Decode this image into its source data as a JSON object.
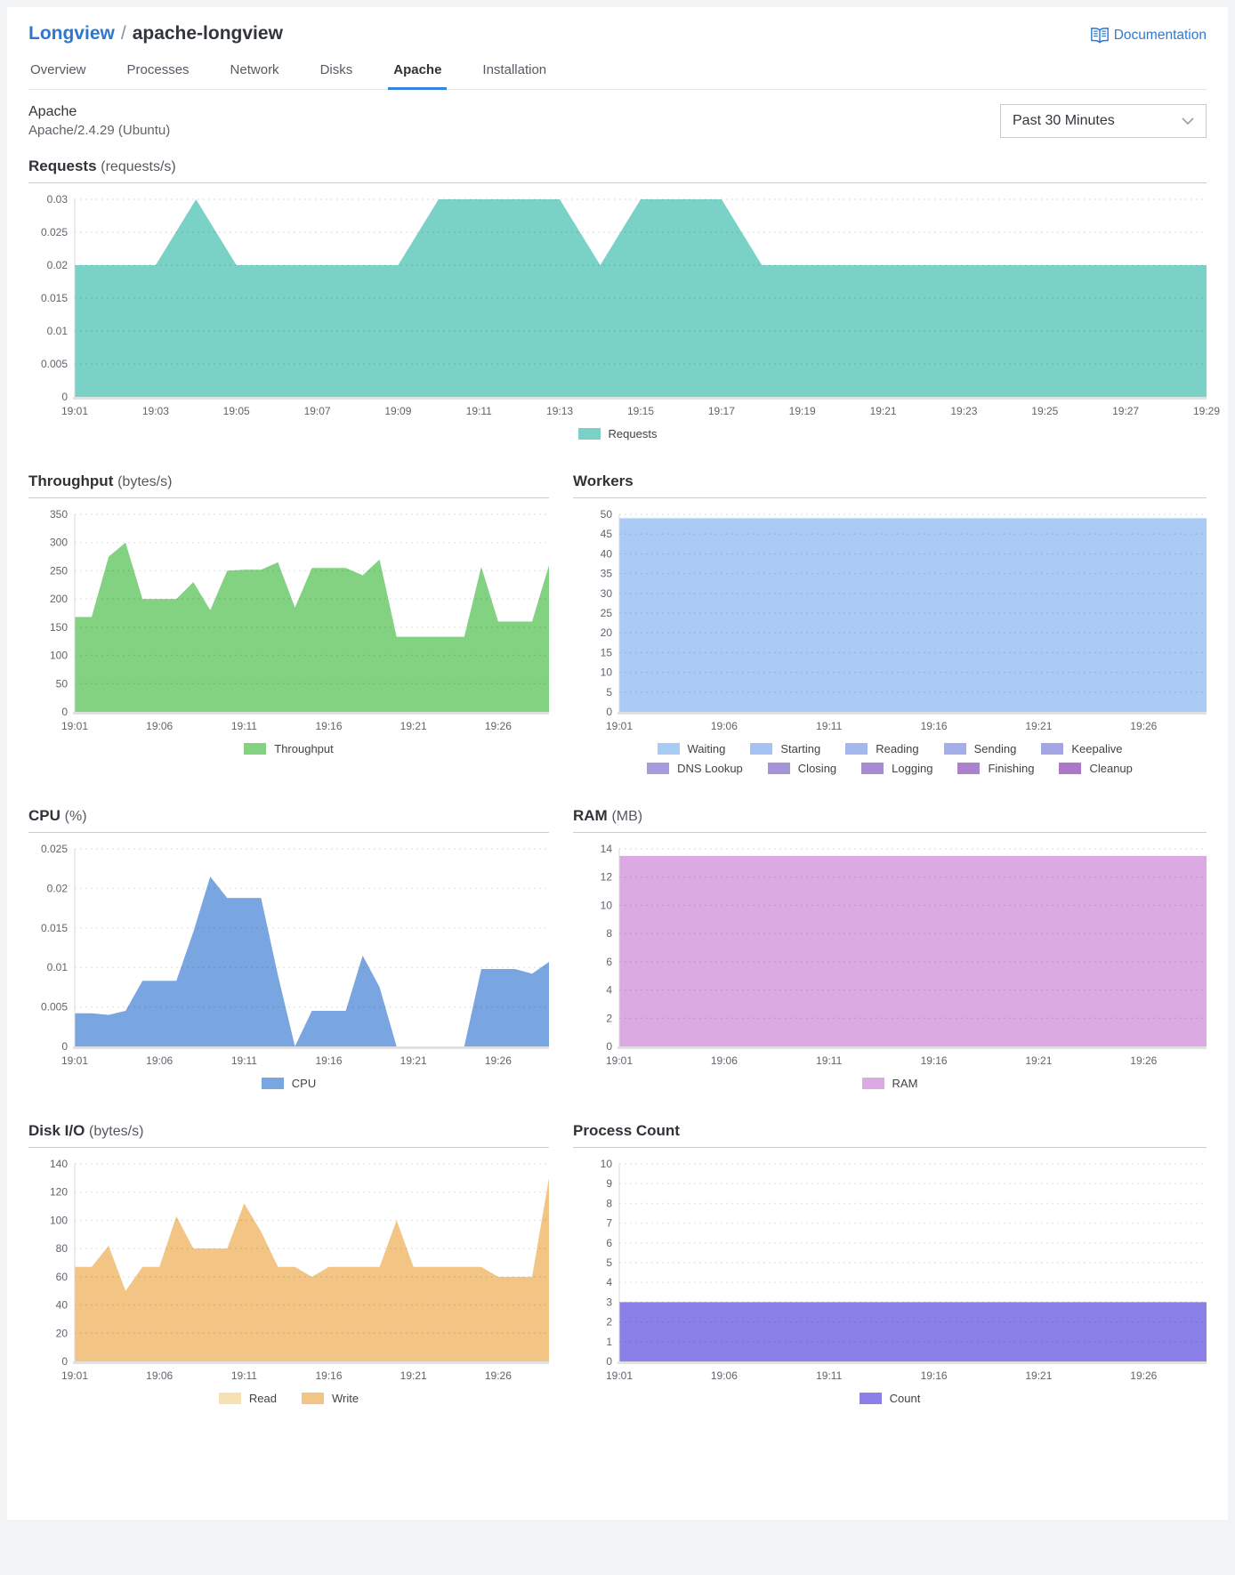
{
  "header": {
    "breadcrumb": {
      "parent": "Longview",
      "separator": "/",
      "current": "apache-longview"
    },
    "documentation_label": "Documentation",
    "tabs": [
      {
        "label": "Overview"
      },
      {
        "label": "Processes"
      },
      {
        "label": "Network"
      },
      {
        "label": "Disks"
      },
      {
        "label": "Apache"
      },
      {
        "label": "Installation"
      }
    ],
    "active_tab": "Apache"
  },
  "subheader": {
    "title": "Apache",
    "version": "Apache/2.4.29 (Ubuntu)",
    "time_range_value": "Past 30 Minutes"
  },
  "colors": {
    "accent_blue": "#3683dc",
    "link_blue": "#2f7ad1",
    "requests_teal": "#79d2c5",
    "throughput_green": "#82d282",
    "workers_blue": "#abcbf7",
    "cpu_blue": "#79a5e0",
    "ram_orchid": "#dcaae2",
    "disk_read": "#f8e0b5",
    "disk_write": "#f3c584",
    "count_purple": "#8b80e8"
  },
  "chart_data": [
    {
      "type": "area",
      "title": "Requests",
      "unit": "(requests/s)",
      "ylim": [
        0,
        0.03
      ],
      "yticks": [
        "0",
        "0.005",
        "0.01",
        "0.015",
        "0.02",
        "0.025",
        "0.03"
      ],
      "x_minutes_span": [
        1,
        29
      ],
      "xticks": [
        {
          "m": 1,
          "label": "19:01"
        },
        {
          "m": 3,
          "label": "19:03"
        },
        {
          "m": 5,
          "label": "19:05"
        },
        {
          "m": 7,
          "label": "19:07"
        },
        {
          "m": 9,
          "label": "19:09"
        },
        {
          "m": 11,
          "label": "19:11"
        },
        {
          "m": 13,
          "label": "19:13"
        },
        {
          "m": 15,
          "label": "19:15"
        },
        {
          "m": 17,
          "label": "19:17"
        },
        {
          "m": 19,
          "label": "19:19"
        },
        {
          "m": 21,
          "label": "19:21"
        },
        {
          "m": 23,
          "label": "19:23"
        },
        {
          "m": 25,
          "label": "19:25"
        },
        {
          "m": 27,
          "label": "19:27"
        },
        {
          "m": 29,
          "label": "19:29"
        }
      ],
      "series": [
        {
          "name": "Requests",
          "color": "#79d2c5",
          "values": [
            0.02,
            0.02,
            0.02,
            0.03,
            0.02,
            0.02,
            0.02,
            0.02,
            0.02,
            0.03,
            0.03,
            0.03,
            0.03,
            0.02,
            0.03,
            0.03,
            0.03,
            0.02,
            0.02,
            0.02,
            0.02,
            0.02,
            0.02,
            0.02,
            0.02,
            0.02,
            0.02,
            0.02,
            0.02
          ]
        }
      ],
      "legend": [
        [
          {
            "label": "Requests",
            "color": "#79d2c5"
          }
        ]
      ]
    },
    {
      "type": "area",
      "title": "Throughput",
      "unit": "(bytes/s)",
      "ylim": [
        0,
        350
      ],
      "yticks": [
        "0",
        "50",
        "100",
        "150",
        "200",
        "250",
        "300",
        "350"
      ],
      "x_minutes_span": [
        1,
        29
      ],
      "xticks": [
        {
          "m": 1,
          "label": "19:01"
        },
        {
          "m": 6,
          "label": "19:06"
        },
        {
          "m": 11,
          "label": "19:11"
        },
        {
          "m": 16,
          "label": "19:16"
        },
        {
          "m": 21,
          "label": "19:21"
        },
        {
          "m": 26,
          "label": "19:26"
        }
      ],
      "series": [
        {
          "name": "Throughput",
          "color": "#82d282",
          "values": [
            168,
            168,
            275,
            300,
            200,
            200,
            200,
            230,
            180,
            250,
            252,
            252,
            265,
            185,
            255,
            255,
            255,
            242,
            270,
            133,
            133,
            133,
            133,
            133,
            257,
            160,
            160,
            160,
            260
          ]
        }
      ],
      "legend": [
        [
          {
            "label": "Throughput",
            "color": "#82d282"
          }
        ]
      ]
    },
    {
      "type": "area",
      "title": "Workers",
      "unit": "",
      "ylim": [
        0,
        50
      ],
      "yticks": [
        "0",
        "5",
        "10",
        "15",
        "20",
        "25",
        "30",
        "35",
        "40",
        "45",
        "50"
      ],
      "x_minutes_span": [
        1,
        29
      ],
      "xticks": [
        {
          "m": 1,
          "label": "19:01"
        },
        {
          "m": 6,
          "label": "19:06"
        },
        {
          "m": 11,
          "label": "19:11"
        },
        {
          "m": 16,
          "label": "19:16"
        },
        {
          "m": 21,
          "label": "19:21"
        },
        {
          "m": 26,
          "label": "19:26"
        }
      ],
      "series": [
        {
          "name": "Waiting",
          "color": "#abcbf7",
          "values": {
            "flat": 49,
            "n": 29
          }
        },
        {
          "name": "Starting",
          "color": "#a6c2f4",
          "values": {
            "flat": 0,
            "n": 29
          }
        },
        {
          "name": "Reading",
          "color": "#a4b8ef",
          "values": {
            "flat": 0,
            "n": 29
          }
        },
        {
          "name": "Sending",
          "color": "#a4afe9",
          "values": {
            "flat": 0,
            "n": 29
          }
        },
        {
          "name": "Keepalive",
          "color": "#a4a5e3",
          "values": {
            "flat": 0,
            "n": 29
          }
        },
        {
          "name": "DNS Lookup",
          "color": "#a49cde",
          "values": {
            "flat": 0,
            "n": 29
          }
        },
        {
          "name": "Closing",
          "color": "#a593d8",
          "values": {
            "flat": 0,
            "n": 29
          }
        },
        {
          "name": "Logging",
          "color": "#a78ad2",
          "values": {
            "flat": 0,
            "n": 29
          }
        },
        {
          "name": "Finishing",
          "color": "#a981cc",
          "values": {
            "flat": 0,
            "n": 29
          }
        },
        {
          "name": "Cleanup",
          "color": "#ab78c6",
          "values": {
            "flat": 0,
            "n": 29
          }
        }
      ],
      "legend": [
        [
          {
            "label": "Waiting",
            "color": "#abcbf7"
          },
          {
            "label": "Starting",
            "color": "#a6c2f4"
          },
          {
            "label": "Reading",
            "color": "#a4b8ef"
          },
          {
            "label": "Sending",
            "color": "#a4afe9"
          },
          {
            "label": "Keepalive",
            "color": "#a4a5e3"
          }
        ],
        [
          {
            "label": "DNS Lookup",
            "color": "#a49cde"
          },
          {
            "label": "Closing",
            "color": "#a593d8"
          },
          {
            "label": "Logging",
            "color": "#a78ad2"
          },
          {
            "label": "Finishing",
            "color": "#a981cc"
          },
          {
            "label": "Cleanup",
            "color": "#ab78c6"
          }
        ]
      ]
    },
    {
      "type": "area",
      "title": "CPU",
      "unit": "(%)",
      "ylim": [
        0,
        0.025
      ],
      "yticks": [
        "0",
        "0.005",
        "0.01",
        "0.015",
        "0.02",
        "0.025"
      ],
      "x_minutes_span": [
        1,
        29
      ],
      "xticks": [
        {
          "m": 1,
          "label": "19:01"
        },
        {
          "m": 6,
          "label": "19:06"
        },
        {
          "m": 11,
          "label": "19:11"
        },
        {
          "m": 16,
          "label": "19:16"
        },
        {
          "m": 21,
          "label": "19:21"
        },
        {
          "m": 26,
          "label": "19:26"
        }
      ],
      "series": [
        {
          "name": "CPU",
          "color": "#79a5e0",
          "values": [
            0.0042,
            0.0042,
            0.004,
            0.0045,
            0.0083,
            0.0083,
            0.0083,
            0.0145,
            0.0215,
            0.0188,
            0.0188,
            0.0188,
            0.009,
            0,
            0.0045,
            0.0045,
            0.0045,
            0.0115,
            0.0075,
            0,
            0,
            0,
            0,
            0,
            0.0098,
            0.0098,
            0.0098,
            0.0092,
            0.0107
          ]
        }
      ],
      "legend": [
        [
          {
            "label": "CPU",
            "color": "#79a5e0"
          }
        ]
      ]
    },
    {
      "type": "area",
      "title": "RAM",
      "unit": "(MB)",
      "ylim": [
        0,
        14
      ],
      "yticks": [
        "0",
        "2",
        "4",
        "6",
        "8",
        "10",
        "12",
        "14"
      ],
      "x_minutes_span": [
        1,
        29
      ],
      "xticks": [
        {
          "m": 1,
          "label": "19:01"
        },
        {
          "m": 6,
          "label": "19:06"
        },
        {
          "m": 11,
          "label": "19:11"
        },
        {
          "m": 16,
          "label": "19:16"
        },
        {
          "m": 21,
          "label": "19:21"
        },
        {
          "m": 26,
          "label": "19:26"
        }
      ],
      "series": [
        {
          "name": "RAM",
          "color": "#dcaae2",
          "values": {
            "flat": 13.5,
            "n": 29
          }
        }
      ],
      "legend": [
        [
          {
            "label": "RAM",
            "color": "#dcaae2"
          }
        ]
      ]
    },
    {
      "type": "area",
      "title": "Disk I/O",
      "unit": "(bytes/s)",
      "ylim": [
        0,
        140
      ],
      "yticks": [
        "0",
        "20",
        "40",
        "60",
        "80",
        "100",
        "120",
        "140"
      ],
      "x_minutes_span": [
        1,
        29
      ],
      "xticks": [
        {
          "m": 1,
          "label": "19:01"
        },
        {
          "m": 6,
          "label": "19:06"
        },
        {
          "m": 11,
          "label": "19:11"
        },
        {
          "m": 16,
          "label": "19:16"
        },
        {
          "m": 21,
          "label": "19:21"
        },
        {
          "m": 26,
          "label": "19:26"
        }
      ],
      "series": [
        {
          "name": "Read",
          "color": "#f8e0b5",
          "values": {
            "flat": 0,
            "n": 29
          }
        },
        {
          "name": "Write",
          "color": "#f3c584",
          "values": [
            67,
            67,
            82,
            50,
            67,
            67,
            103,
            80,
            80,
            80,
            112,
            92,
            67,
            67,
            60,
            67,
            67,
            67,
            67,
            100,
            67,
            67,
            67,
            67,
            67,
            60,
            60,
            60,
            130
          ]
        }
      ],
      "legend": [
        [
          {
            "label": "Read",
            "color": "#f8e0b5"
          },
          {
            "label": "Write",
            "color": "#f3c584"
          }
        ]
      ]
    },
    {
      "type": "area",
      "title": "Process Count",
      "unit": "",
      "ylim": [
        0,
        10
      ],
      "yticks": [
        "0",
        "1",
        "2",
        "3",
        "4",
        "5",
        "6",
        "7",
        "8",
        "9",
        "10"
      ],
      "x_minutes_span": [
        1,
        29
      ],
      "xticks": [
        {
          "m": 1,
          "label": "19:01"
        },
        {
          "m": 6,
          "label": "19:06"
        },
        {
          "m": 11,
          "label": "19:11"
        },
        {
          "m": 16,
          "label": "19:16"
        },
        {
          "m": 21,
          "label": "19:21"
        },
        {
          "m": 26,
          "label": "19:26"
        }
      ],
      "series": [
        {
          "name": "Count",
          "color": "#8b80e8",
          "values": {
            "flat": 3,
            "n": 29
          }
        }
      ],
      "legend": [
        [
          {
            "label": "Count",
            "color": "#8b80e8"
          }
        ]
      ]
    }
  ]
}
